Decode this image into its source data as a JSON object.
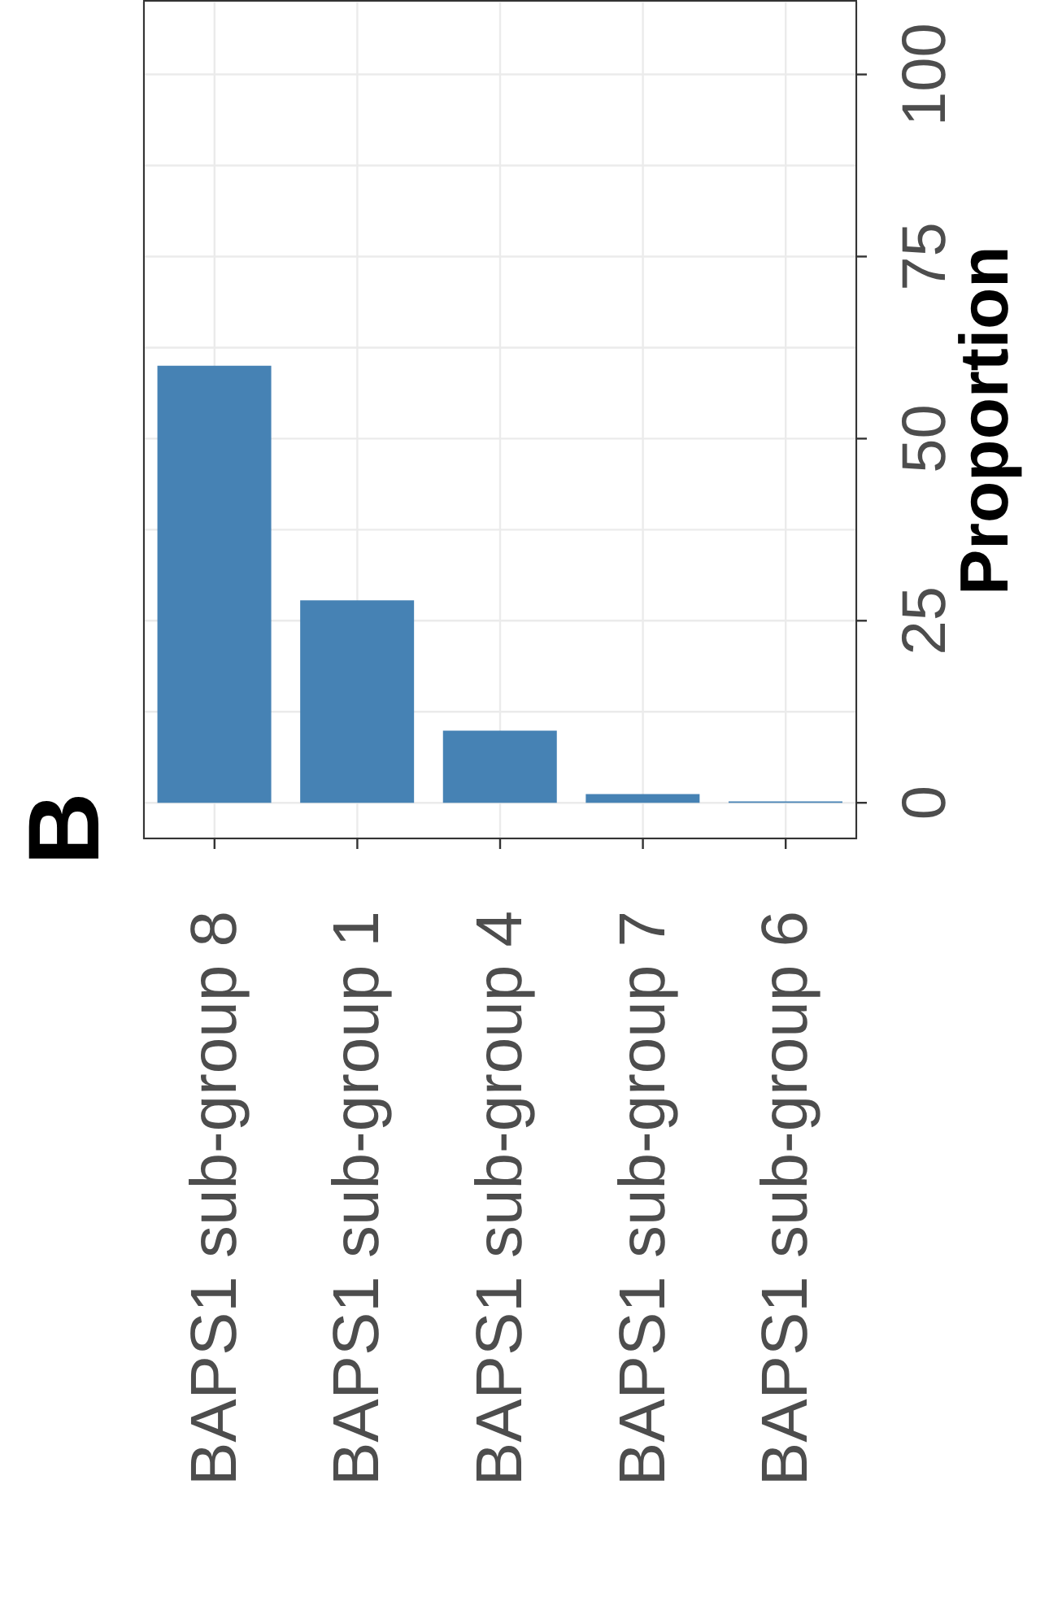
{
  "chart_data": {
    "type": "bar",
    "title": "B",
    "ylabel": "Proportion",
    "categories": [
      "BAPS1 sub-group 8",
      "BAPS1 sub-group 1",
      "BAPS1 sub-group 4",
      "BAPS1 sub-group 7",
      "BAPS1 sub-group 6"
    ],
    "values": [
      60,
      27.8,
      9.9,
      1.2,
      0.2
    ],
    "color": "#4682b4",
    "ylim": [
      -5,
      110
    ],
    "yticks": [
      0,
      {
        "value": 12.5,
        "label": null
      },
      25,
      {
        "value": 37.5,
        "label": null
      },
      50,
      {
        "value": 62.5,
        "label": null
      },
      75,
      {
        "value": 87.5,
        "label": null
      },
      100
    ],
    "grid": true
  }
}
